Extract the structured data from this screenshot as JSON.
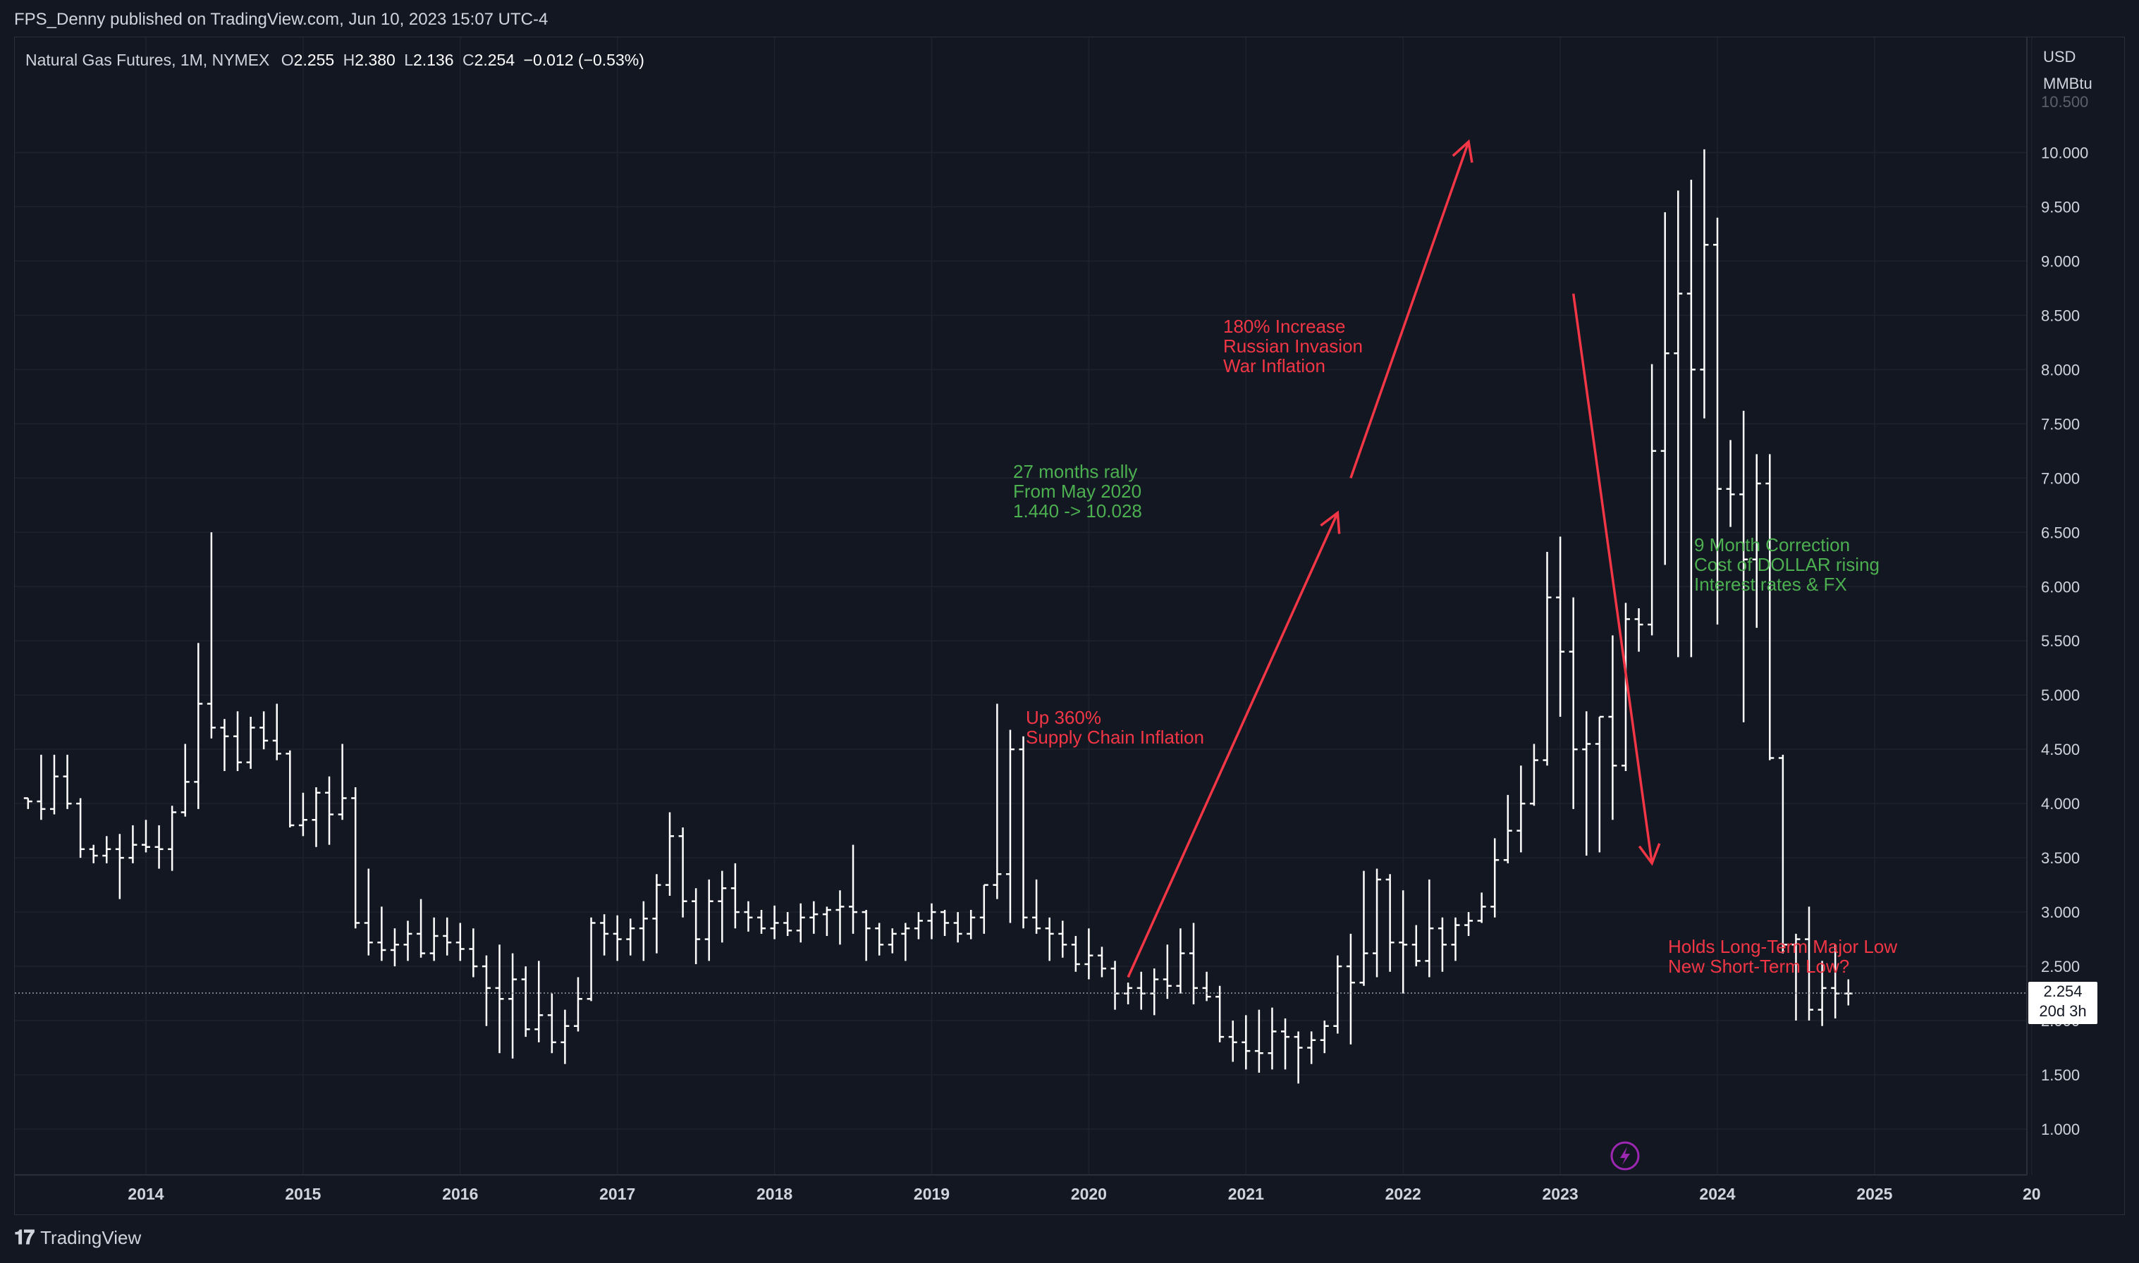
{
  "header": {
    "publisher": "FPS_Denny published on TradingView.com, Jun 10, 2023 15:07 UTC-4"
  },
  "legend": {
    "symbol": "Natural Gas Futures, 1M, NYMEX",
    "o_label": "O",
    "o": "2.255",
    "h_label": "H",
    "h": "2.380",
    "l_label": "L",
    "l": "2.136",
    "c_label": "C",
    "c": "2.254",
    "change": "−0.012 (−0.53%)"
  },
  "price_scale": {
    "currency": "USD",
    "unit": "MMBtu",
    "top_partial": "10.500"
  },
  "price_tag": {
    "price": "2.254",
    "countdown": "20d 3h"
  },
  "footer": {
    "logo": "TradingView"
  },
  "colors": {
    "background": "#131722",
    "grid": "#1e222d",
    "bar": "#ffffff",
    "annotation_red": "#f23645",
    "annotation_green": "#4caf50"
  },
  "chart_data": {
    "type": "ohlc",
    "interval": "1M",
    "ylim": [
      0.6,
      10.7
    ],
    "y_ticks": [
      "1.000",
      "1.500",
      "2.000",
      "2.500",
      "3.000",
      "3.500",
      "4.000",
      "4.500",
      "5.000",
      "5.500",
      "6.000",
      "6.500",
      "7.000",
      "7.500",
      "8.000",
      "8.500",
      "9.000",
      "9.500",
      "10.000"
    ],
    "x_ticks": [
      "2014",
      "2015",
      "2016",
      "2017",
      "2018",
      "2019",
      "2020",
      "2021",
      "2022",
      "2023",
      "2024",
      "2025",
      "20"
    ],
    "x_start": "2013-04",
    "bars": [
      [
        4.05,
        4.05,
        3.95,
        4.02
      ],
      [
        4.02,
        4.45,
        3.85,
        3.95
      ],
      [
        3.95,
        4.45,
        3.9,
        4.25
      ],
      [
        4.25,
        4.45,
        3.95,
        4.0
      ],
      [
        4.0,
        4.05,
        3.5,
        3.58
      ],
      [
        3.58,
        3.62,
        3.45,
        3.52
      ],
      [
        3.52,
        3.7,
        3.45,
        3.58
      ],
      [
        3.58,
        3.72,
        3.12,
        3.5
      ],
      [
        3.5,
        3.8,
        3.45,
        3.62
      ],
      [
        3.62,
        3.85,
        3.55,
        3.6
      ],
      [
        3.6,
        3.8,
        3.4,
        3.58
      ],
      [
        3.58,
        3.98,
        3.38,
        3.92
      ],
      [
        3.92,
        4.55,
        3.88,
        4.2
      ],
      [
        4.2,
        5.48,
        3.95,
        4.92
      ],
      [
        4.92,
        6.5,
        4.6,
        4.7
      ],
      [
        4.7,
        4.78,
        4.3,
        4.62
      ],
      [
        4.62,
        4.85,
        4.3,
        4.38
      ],
      [
        4.38,
        4.8,
        4.32,
        4.7
      ],
      [
        4.7,
        4.85,
        4.5,
        4.58
      ],
      [
        4.58,
        4.92,
        4.4,
        4.46
      ],
      [
        4.46,
        4.49,
        3.78,
        3.8
      ],
      [
        3.8,
        4.1,
        3.7,
        3.85
      ],
      [
        3.85,
        4.15,
        3.6,
        4.1
      ],
      [
        4.1,
        4.25,
        3.62,
        3.9
      ],
      [
        3.9,
        4.55,
        3.85,
        4.05
      ],
      [
        4.05,
        4.15,
        2.85,
        2.9
      ],
      [
        2.9,
        3.4,
        2.6,
        2.72
      ],
      [
        2.72,
        3.05,
        2.55,
        2.65
      ],
      [
        2.65,
        2.85,
        2.5,
        2.7
      ],
      [
        2.7,
        2.92,
        2.55,
        2.8
      ],
      [
        2.8,
        3.12,
        2.58,
        2.62
      ],
      [
        2.62,
        2.95,
        2.55,
        2.78
      ],
      [
        2.78,
        2.95,
        2.6,
        2.72
      ],
      [
        2.72,
        2.9,
        2.55,
        2.66
      ],
      [
        2.66,
        2.85,
        2.4,
        2.5
      ],
      [
        2.5,
        2.6,
        1.95,
        2.3
      ],
      [
        2.3,
        2.7,
        1.7,
        2.2
      ],
      [
        2.2,
        2.62,
        1.65,
        2.38
      ],
      [
        2.38,
        2.5,
        1.85,
        1.92
      ],
      [
        1.92,
        2.55,
        1.8,
        2.05
      ],
      [
        2.05,
        2.25,
        1.7,
        1.8
      ],
      [
        1.8,
        2.1,
        1.6,
        1.95
      ],
      [
        1.95,
        2.4,
        1.9,
        2.2
      ],
      [
        2.2,
        2.95,
        2.18,
        2.9
      ],
      [
        2.9,
        2.98,
        2.6,
        2.8
      ],
      [
        2.8,
        2.97,
        2.55,
        2.75
      ],
      [
        2.75,
        2.94,
        2.6,
        2.85
      ],
      [
        2.85,
        3.1,
        2.55,
        2.94
      ],
      [
        2.94,
        3.35,
        2.62,
        3.25
      ],
      [
        3.25,
        3.92,
        3.15,
        3.7
      ],
      [
        3.7,
        3.78,
        2.95,
        3.1
      ],
      [
        3.1,
        3.22,
        2.52,
        2.75
      ],
      [
        2.75,
        3.3,
        2.55,
        3.1
      ],
      [
        3.1,
        3.38,
        2.72,
        3.22
      ],
      [
        3.22,
        3.45,
        2.85,
        3.0
      ],
      [
        3.0,
        3.1,
        2.82,
        2.95
      ],
      [
        2.95,
        3.02,
        2.8,
        2.85
      ],
      [
        2.85,
        3.06,
        2.75,
        2.9
      ],
      [
        2.9,
        3.0,
        2.78,
        2.83
      ],
      [
        2.83,
        3.08,
        2.72,
        2.95
      ],
      [
        2.95,
        3.1,
        2.8,
        2.98
      ],
      [
        2.98,
        3.05,
        2.78,
        3.02
      ],
      [
        3.02,
        3.2,
        2.7,
        3.05
      ],
      [
        3.05,
        3.62,
        2.8,
        3.0
      ],
      [
        3.0,
        3.02,
        2.55,
        2.85
      ],
      [
        2.85,
        2.9,
        2.6,
        2.7
      ],
      [
        2.7,
        2.85,
        2.62,
        2.8
      ],
      [
        2.8,
        2.9,
        2.55,
        2.85
      ],
      [
        2.85,
        3.0,
        2.75,
        2.92
      ],
      [
        2.92,
        3.08,
        2.75,
        3.0
      ],
      [
        3.0,
        3.02,
        2.78,
        2.9
      ],
      [
        2.9,
        3.0,
        2.72,
        2.8
      ],
      [
        2.8,
        3.02,
        2.75,
        2.95
      ],
      [
        2.95,
        3.25,
        2.8,
        3.25
      ],
      [
        3.25,
        4.92,
        3.12,
        3.35
      ],
      [
        3.35,
        4.68,
        2.9,
        4.5
      ],
      [
        4.5,
        4.62,
        2.85,
        2.95
      ],
      [
        2.95,
        3.3,
        2.8,
        2.85
      ],
      [
        2.85,
        2.95,
        2.55,
        2.8
      ],
      [
        2.8,
        2.92,
        2.58,
        2.7
      ],
      [
        2.7,
        2.78,
        2.45,
        2.52
      ],
      [
        2.52,
        2.85,
        2.38,
        2.6
      ],
      [
        2.6,
        2.68,
        2.4,
        2.48
      ],
      [
        2.48,
        2.55,
        2.1,
        2.25
      ],
      [
        2.25,
        2.35,
        2.15,
        2.3
      ],
      [
        2.3,
        2.45,
        2.1,
        2.25
      ],
      [
        2.25,
        2.48,
        2.05,
        2.38
      ],
      [
        2.38,
        2.7,
        2.2,
        2.32
      ],
      [
        2.32,
        2.85,
        2.25,
        2.62
      ],
      [
        2.62,
        2.9,
        2.15,
        2.3
      ],
      [
        2.3,
        2.45,
        2.18,
        2.22
      ],
      [
        2.22,
        2.32,
        1.8,
        1.85
      ],
      [
        1.85,
        2.0,
        1.62,
        1.8
      ],
      [
        1.8,
        2.05,
        1.55,
        1.72
      ],
      [
        1.72,
        2.1,
        1.52,
        1.7
      ],
      [
        1.7,
        2.12,
        1.55,
        1.9
      ],
      [
        1.9,
        2.02,
        1.55,
        1.85
      ],
      [
        1.85,
        1.9,
        1.42,
        1.75
      ],
      [
        1.75,
        1.9,
        1.6,
        1.82
      ],
      [
        1.82,
        2.0,
        1.7,
        1.95
      ],
      [
        1.95,
        2.6,
        1.88,
        2.5
      ],
      [
        2.5,
        2.8,
        1.78,
        2.35
      ],
      [
        2.35,
        3.38,
        2.32,
        2.62
      ],
      [
        2.62,
        3.4,
        2.4,
        3.3
      ],
      [
        3.3,
        3.35,
        2.45,
        2.72
      ],
      [
        2.72,
        3.2,
        2.25,
        2.7
      ],
      [
        2.7,
        2.88,
        2.5,
        2.55
      ],
      [
        2.55,
        3.3,
        2.4,
        2.85
      ],
      [
        2.85,
        2.95,
        2.45,
        2.7
      ],
      [
        2.7,
        2.95,
        2.55,
        2.88
      ],
      [
        2.88,
        3.0,
        2.78,
        2.92
      ],
      [
        2.92,
        3.18,
        2.9,
        3.05
      ],
      [
        3.05,
        3.68,
        2.95,
        3.48
      ],
      [
        3.48,
        4.08,
        3.45,
        3.75
      ],
      [
        3.75,
        4.35,
        3.55,
        4.0
      ],
      [
        4.0,
        4.55,
        3.98,
        4.4
      ],
      [
        4.4,
        6.32,
        4.35,
        5.9
      ],
      [
        5.9,
        6.46,
        4.8,
        5.4
      ],
      [
        5.4,
        5.9,
        3.95,
        4.5
      ],
      [
        4.5,
        4.85,
        3.52,
        4.55
      ],
      [
        4.55,
        4.8,
        3.55,
        4.8
      ],
      [
        4.8,
        5.55,
        3.85,
        4.35
      ],
      [
        4.35,
        5.85,
        4.3,
        5.7
      ],
      [
        5.7,
        5.8,
        5.4,
        5.65
      ],
      [
        5.65,
        8.05,
        5.55,
        7.25
      ],
      [
        7.25,
        9.45,
        6.2,
        8.15
      ],
      [
        8.15,
        9.65,
        5.35,
        8.7
      ],
      [
        8.7,
        9.75,
        5.35,
        8.0
      ],
      [
        8.0,
        10.03,
        7.55,
        9.15
      ],
      [
        9.15,
        9.4,
        5.65,
        6.9
      ],
      [
        6.9,
        7.35,
        6.55,
        6.85
      ],
      [
        6.85,
        7.62,
        4.75,
        6.25
      ],
      [
        6.25,
        7.22,
        5.62,
        6.95
      ],
      [
        6.95,
        7.22,
        4.4,
        4.42
      ],
      [
        4.42,
        4.45,
        2.62,
        2.7
      ],
      [
        2.7,
        2.8,
        2.0,
        2.75
      ],
      [
        2.75,
        3.05,
        2.0,
        2.1
      ],
      [
        2.1,
        2.55,
        1.95,
        2.3
      ],
      [
        2.3,
        2.7,
        2.02,
        2.25
      ],
      [
        2.25,
        2.38,
        2.14,
        2.25
      ]
    ],
    "annotations": [
      {
        "lines": [
          "27 months rally",
          "From May 2020",
          "1.440 -> 10.028"
        ],
        "color": "green"
      },
      {
        "lines": [
          "180% Increase",
          "Russian Invasion",
          "War Inflation"
        ],
        "color": "red"
      },
      {
        "lines": [
          "Up 360%",
          "Supply Chain Inflation"
        ],
        "color": "red"
      },
      {
        "lines": [
          "9 Month Correction",
          "Cost of DOLLAR rising",
          "Interest rates & FX"
        ],
        "color": "green"
      },
      {
        "lines": [
          "Holds Long-Term Major Low",
          "New Short-Term Low?"
        ],
        "color": "red"
      }
    ],
    "arrows": [
      {
        "from": [
          "2020-04",
          2.4
        ],
        "to": [
          "2021-08",
          6.68
        ]
      },
      {
        "from": [
          "2021-09",
          7.0
        ],
        "to": [
          "2022-06",
          10.1
        ]
      },
      {
        "from": [
          "2023-02",
          8.7
        ],
        "to": [
          "2023-08",
          3.45
        ]
      }
    ]
  }
}
